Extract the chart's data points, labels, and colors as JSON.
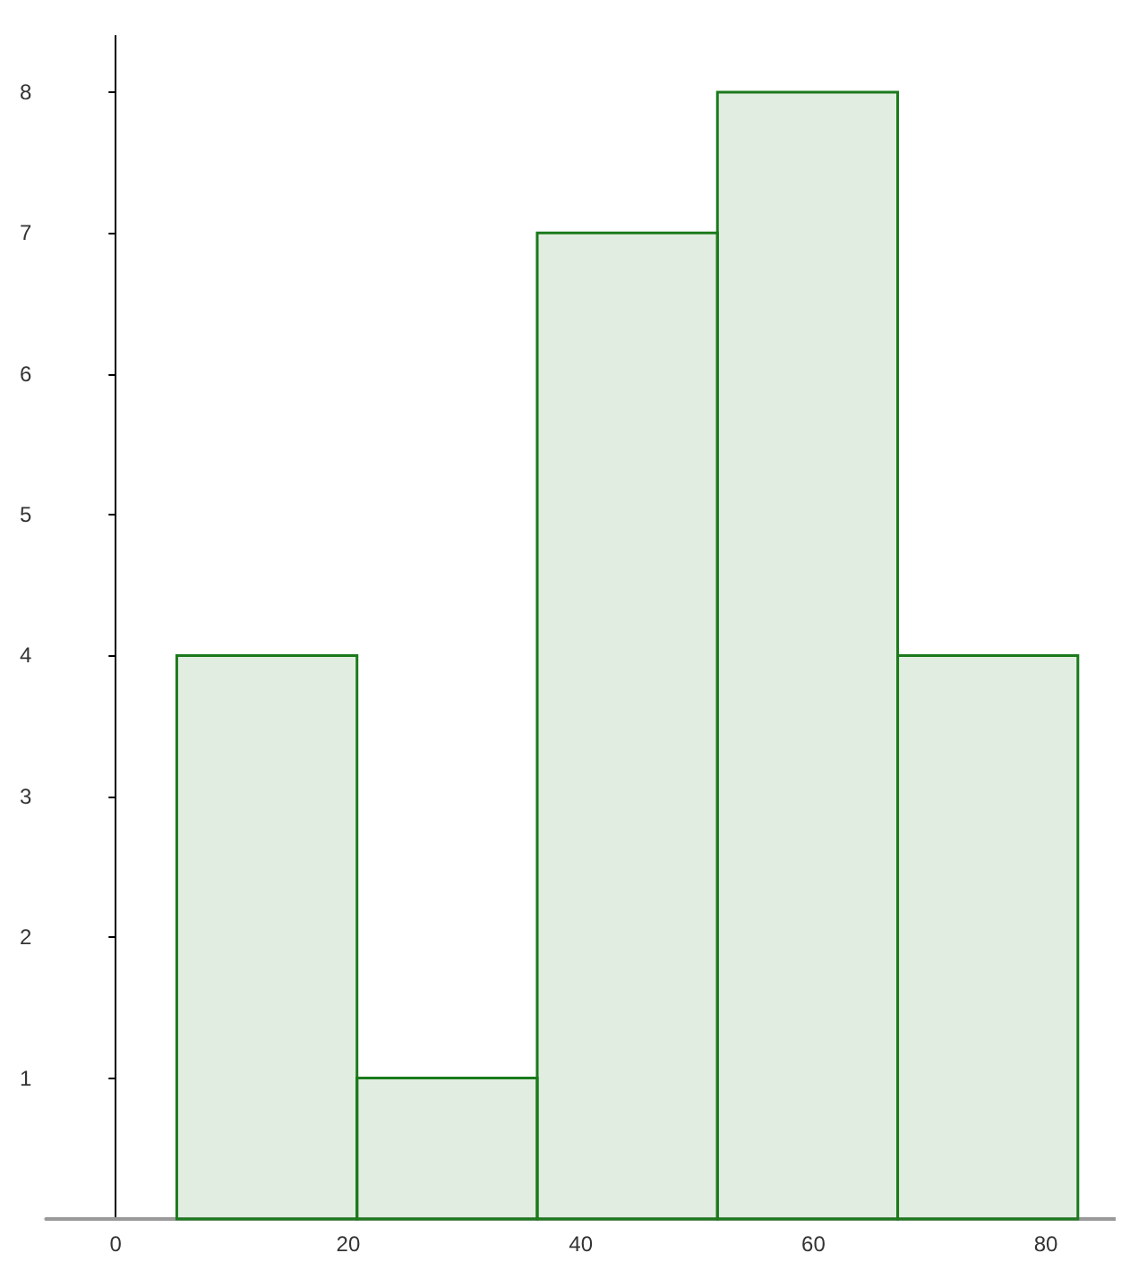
{
  "chart_data": {
    "type": "histogram",
    "bins": [
      5.25,
      20.75,
      36.25,
      51.75,
      67.25,
      82.75
    ],
    "values": [
      4,
      1,
      7,
      8,
      4
    ],
    "color": "#1b7a1b",
    "xlim": [
      -6,
      86
    ],
    "xticks": [
      0,
      20,
      40,
      60,
      80
    ],
    "ylim": [
      0,
      8.4
    ],
    "yticks": [
      1,
      2,
      3,
      4,
      5,
      6,
      7,
      8
    ]
  }
}
